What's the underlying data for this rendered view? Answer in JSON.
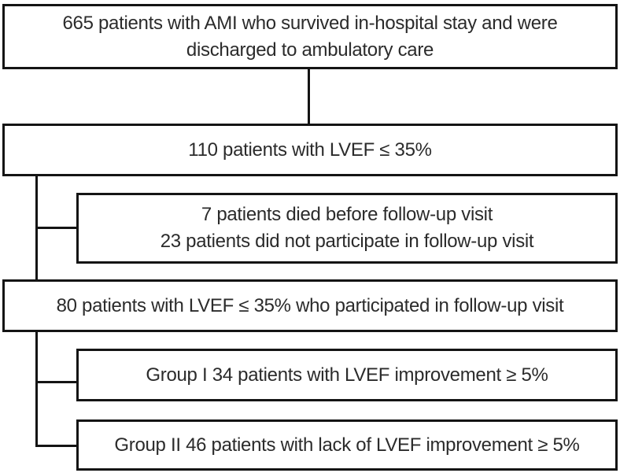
{
  "colors": {
    "background": "#ffffff",
    "box_border": "#141414",
    "connector": "#141414",
    "text": "#2b2b2b"
  },
  "flowchart": {
    "nodes": [
      {
        "id": "total-ami-patients",
        "lines": [
          "665 patients with AMI who survived in-hospital stay and were",
          "discharged to ambulatory care"
        ]
      },
      {
        "id": "lvef-under-35",
        "lines": [
          "110 patients with LVEF ≤ 35%"
        ]
      },
      {
        "id": "excluded-patients",
        "lines": [
          "7 patients died before follow-up visit",
          "23 patients did not participate in follow-up visit"
        ]
      },
      {
        "id": "followup-participants",
        "lines": [
          "80 patients with LVEF ≤ 35% who participated in follow-up visit"
        ]
      },
      {
        "id": "group-1",
        "lines": [
          "Group I 34 patients with LVEF improvement ≥ 5%"
        ]
      },
      {
        "id": "group-2",
        "lines": [
          "Group II 46 patients with lack of LVEF improvement ≥ 5%"
        ]
      }
    ]
  }
}
